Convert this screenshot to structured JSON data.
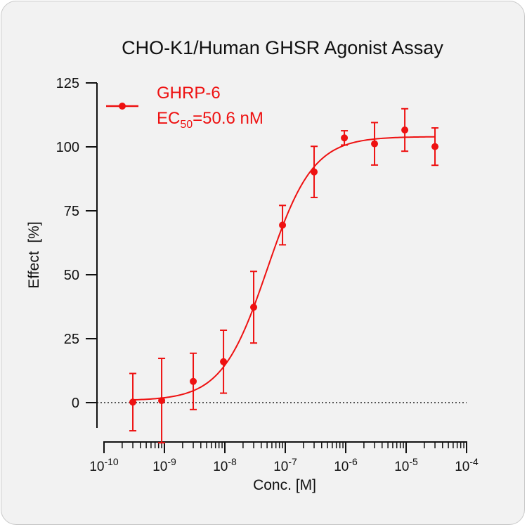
{
  "chart_data": {
    "type": "scatter",
    "title": "CHO-K1/Human GHSR Agonist Assay",
    "xlabel": "Conc. [M]",
    "ylabel": "Effect  [%]",
    "x_scale": "log",
    "xlim": [
      1e-10,
      0.0001
    ],
    "ylim": [
      -10,
      125
    ],
    "x_ticks": [
      {
        "value": 1e-10,
        "base": "10",
        "exp": "-10"
      },
      {
        "value": 1e-09,
        "base": "10",
        "exp": "-9"
      },
      {
        "value": 1e-08,
        "base": "10",
        "exp": "-8"
      },
      {
        "value": 1e-07,
        "base": "10",
        "exp": "-7"
      },
      {
        "value": 1e-06,
        "base": "10",
        "exp": "-6"
      },
      {
        "value": 1e-05,
        "base": "10",
        "exp": "-5"
      },
      {
        "value": 0.0001,
        "base": "10",
        "exp": "-4"
      }
    ],
    "y_ticks": [
      0,
      25,
      50,
      75,
      100,
      125
    ],
    "reference_line_y": 0,
    "legend_position": "top-left",
    "series": [
      {
        "name": "GHRP-6",
        "ec50_prefix": "EC",
        "ec50_sub": "50",
        "ec50_value": "=50.6 nM",
        "color": "#ee1111",
        "fit": {
          "bottom": 0.8,
          "top": 104,
          "ec50": 5.06e-08,
          "hill": 1.15
        },
        "points": [
          {
            "x": 3e-10,
            "y": 0.2,
            "err": 11.2
          },
          {
            "x": 9e-10,
            "y": 0.8,
            "err": 16.5
          },
          {
            "x": 3e-09,
            "y": 8.3,
            "err": 11
          },
          {
            "x": 9.5e-09,
            "y": 16,
            "err": 12.3
          },
          {
            "x": 3e-08,
            "y": 37.3,
            "err": 14
          },
          {
            "x": 9e-08,
            "y": 69.4,
            "err": 7.7
          },
          {
            "x": 3e-07,
            "y": 90.2,
            "err": 10
          },
          {
            "x": 9.5e-07,
            "y": 103.5,
            "err": 2.8
          },
          {
            "x": 3e-06,
            "y": 101.2,
            "err": 8.3
          },
          {
            "x": 9.5e-06,
            "y": 106.6,
            "err": 8.3
          },
          {
            "x": 3e-05,
            "y": 100.1,
            "err": 7.3
          }
        ]
      }
    ]
  }
}
